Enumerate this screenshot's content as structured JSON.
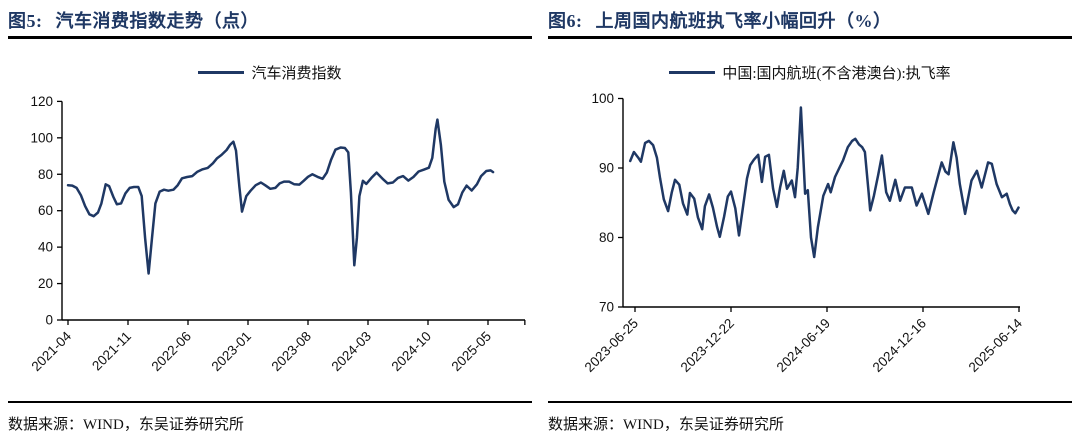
{
  "panels": [
    {
      "figure_label": "图5:",
      "title": "汽车消费指数走势（点）",
      "legend": "汽车消费指数",
      "source": "数据来源：WIND，东吴证券研究所"
    },
    {
      "figure_label": "图6:",
      "title": "上周国内航班执飞率小幅回升（%）",
      "legend": "中国:国内航班(不含港澳台):执飞率",
      "source": "数据来源：WIND，东吴证券研究所"
    }
  ],
  "colors": {
    "accent": "#1F3864",
    "line": "#1F3864",
    "axis": "#000000",
    "tick_label": "#111111"
  },
  "chart_data": [
    {
      "type": "line",
      "title": "汽车消费指数走势（点）",
      "series_name": "汽车消费指数",
      "x_unit": "months since 2021-04",
      "xlim": [
        -0.7,
        53.3
      ],
      "ylim": [
        0,
        120
      ],
      "yticks": [
        0,
        20,
        40,
        60,
        80,
        100,
        120
      ],
      "grid": false,
      "legend_position": "top-center",
      "xticks": [
        {
          "t": 0,
          "label": "2021-04"
        },
        {
          "t": 7,
          "label": "2021-11"
        },
        {
          "t": 14,
          "label": "2022-06"
        },
        {
          "t": 21,
          "label": "2023-01"
        },
        {
          "t": 28,
          "label": "2023-08"
        },
        {
          "t": 35,
          "label": "2024-03"
        },
        {
          "t": 42,
          "label": "2024-10"
        },
        {
          "t": 49,
          "label": "2025-05"
        },
        {
          "t": 53.3,
          "label": ""
        }
      ],
      "points": [
        [
          0,
          74
        ],
        [
          0.5,
          73.8
        ],
        [
          1,
          72.5
        ],
        [
          1.5,
          68.5
        ],
        [
          2,
          62.5
        ],
        [
          2.5,
          58
        ],
        [
          3,
          57
        ],
        [
          3.5,
          59
        ],
        [
          3.9,
          64
        ],
        [
          4.4,
          74.5
        ],
        [
          4.8,
          73.5
        ],
        [
          5.3,
          67.5
        ],
        [
          5.7,
          63.5
        ],
        [
          6.2,
          64
        ],
        [
          6.7,
          69.5
        ],
        [
          7.2,
          72.5
        ],
        [
          7.7,
          73
        ],
        [
          8.2,
          73
        ],
        [
          8.6,
          68
        ],
        [
          9,
          45
        ],
        [
          9.4,
          25.5
        ],
        [
          9.8,
          45
        ],
        [
          10.2,
          64
        ],
        [
          10.7,
          70.5
        ],
        [
          11.2,
          71.5
        ],
        [
          11.7,
          71
        ],
        [
          12.3,
          71.5
        ],
        [
          12.8,
          74
        ],
        [
          13.3,
          77.8
        ],
        [
          13.9,
          78.5
        ],
        [
          14.5,
          79
        ],
        [
          15.1,
          81.4
        ],
        [
          15.7,
          82.7
        ],
        [
          16.3,
          83.5
        ],
        [
          16.9,
          86
        ],
        [
          17.4,
          88.8
        ],
        [
          17.9,
          90.6
        ],
        [
          18.5,
          93.3
        ],
        [
          18.9,
          96.1
        ],
        [
          19.3,
          97.9
        ],
        [
          19.6,
          93
        ],
        [
          20,
          73
        ],
        [
          20.3,
          59.5
        ],
        [
          20.8,
          68
        ],
        [
          21.3,
          71
        ],
        [
          21.9,
          74
        ],
        [
          22.5,
          75.5
        ],
        [
          23,
          74
        ],
        [
          23.6,
          72
        ],
        [
          24.2,
          72.5
        ],
        [
          24.7,
          75
        ],
        [
          25.2,
          76
        ],
        [
          25.8,
          76
        ],
        [
          26.4,
          74.5
        ],
        [
          27,
          74.3
        ],
        [
          27.5,
          76.4
        ],
        [
          28,
          78.6
        ],
        [
          28.5,
          80
        ],
        [
          29.1,
          78.6
        ],
        [
          29.7,
          77.5
        ],
        [
          30.2,
          81
        ],
        [
          30.7,
          88
        ],
        [
          31.2,
          93.5
        ],
        [
          31.8,
          94.7
        ],
        [
          32.3,
          94.4
        ],
        [
          32.7,
          92
        ],
        [
          33,
          70
        ],
        [
          33.4,
          30
        ],
        [
          33.7,
          45
        ],
        [
          34,
          68
        ],
        [
          34.4,
          76.4
        ],
        [
          34.8,
          74.7
        ],
        [
          35.4,
          78
        ],
        [
          36,
          80.9
        ],
        [
          36.7,
          77.5
        ],
        [
          37.3,
          75
        ],
        [
          37.9,
          75.5
        ],
        [
          38.5,
          78
        ],
        [
          39.1,
          79
        ],
        [
          39.7,
          76.5
        ],
        [
          40.3,
          78.5
        ],
        [
          40.9,
          81.5
        ],
        [
          41.5,
          82.5
        ],
        [
          42.1,
          83.6
        ],
        [
          42.5,
          89
        ],
        [
          42.9,
          105
        ],
        [
          43.1,
          110
        ],
        [
          43.5,
          96
        ],
        [
          43.9,
          76
        ],
        [
          44.4,
          66
        ],
        [
          45,
          62
        ],
        [
          45.5,
          63.5
        ],
        [
          46,
          70
        ],
        [
          46.5,
          73.8
        ],
        [
          47.1,
          71.1
        ],
        [
          47.7,
          74.5
        ],
        [
          48.2,
          79
        ],
        [
          48.8,
          81.8
        ],
        [
          49.3,
          82.1
        ],
        [
          49.6,
          81.2
        ]
      ]
    },
    {
      "type": "line",
      "title": "上周国内航班执飞率小幅回升（%）",
      "series_name": "中国:国内航班(不含港澳台):执飞率",
      "x_unit": "days since 2023-06-25",
      "xlim": [
        -22.5,
        722
      ],
      "ylim": [
        70,
        100
      ],
      "yticks": [
        70,
        80,
        90,
        100
      ],
      "grid": false,
      "legend_position": "top-center",
      "xticks": [
        {
          "t": 0,
          "label": "2023-06-25"
        },
        {
          "t": 180,
          "label": "2023-12-22"
        },
        {
          "t": 360,
          "label": "2024-06-19"
        },
        {
          "t": 540,
          "label": "2024-12-16"
        },
        {
          "t": 720,
          "label": "2025-06-14"
        }
      ],
      "points": [
        [
          -9,
          91
        ],
        [
          -2,
          92.3
        ],
        [
          6,
          91.5
        ],
        [
          11,
          90.9
        ],
        [
          19,
          93.6
        ],
        [
          26,
          93.9
        ],
        [
          34,
          93.3
        ],
        [
          41,
          91.5
        ],
        [
          47,
          88.5
        ],
        [
          54,
          85.5
        ],
        [
          62,
          83.8
        ],
        [
          69,
          86.5
        ],
        [
          75,
          88.3
        ],
        [
          83,
          87.6
        ],
        [
          90,
          84.9
        ],
        [
          98,
          83.3
        ],
        [
          103,
          86.4
        ],
        [
          111,
          85.6
        ],
        [
          118,
          82.9
        ],
        [
          126,
          81.2
        ],
        [
          131,
          84.5
        ],
        [
          139,
          86.2
        ],
        [
          146,
          84.3
        ],
        [
          154,
          81.5
        ],
        [
          159,
          80.1
        ],
        [
          167,
          83
        ],
        [
          174,
          85.9
        ],
        [
          180,
          86.6
        ],
        [
          188,
          84.2
        ],
        [
          195,
          80.3
        ],
        [
          203,
          84.7
        ],
        [
          210,
          88.5
        ],
        [
          216,
          90.4
        ],
        [
          223,
          91.2
        ],
        [
          231,
          91.9
        ],
        [
          238,
          88
        ],
        [
          244,
          91.6
        ],
        [
          251,
          91.9
        ],
        [
          259,
          87
        ],
        [
          266,
          84.4
        ],
        [
          272,
          87.2
        ],
        [
          279,
          89.6
        ],
        [
          285,
          87
        ],
        [
          294,
          88.2
        ],
        [
          300,
          85.8
        ],
        [
          305,
          90
        ],
        [
          311,
          98.7
        ],
        [
          319,
          86.3
        ],
        [
          324,
          86.8
        ],
        [
          330,
          80
        ],
        [
          336,
          77.2
        ],
        [
          343,
          81.5
        ],
        [
          353,
          86
        ],
        [
          362,
          87.7
        ],
        [
          367,
          86.5
        ],
        [
          375,
          88.7
        ],
        [
          383,
          90
        ],
        [
          390,
          91.1
        ],
        [
          399,
          93
        ],
        [
          407,
          93.9
        ],
        [
          413,
          94.2
        ],
        [
          420,
          93.4
        ],
        [
          426,
          93
        ],
        [
          431,
          92.3
        ],
        [
          438,
          86.5
        ],
        [
          441,
          83.9
        ],
        [
          448,
          86
        ],
        [
          456,
          89
        ],
        [
          463,
          91.8
        ],
        [
          471,
          86.5
        ],
        [
          478,
          85.3
        ],
        [
          488,
          88.3
        ],
        [
          497,
          85.3
        ],
        [
          506,
          87.2
        ],
        [
          519,
          87.2
        ],
        [
          528,
          84.6
        ],
        [
          538,
          86.3
        ],
        [
          550,
          83.4
        ],
        [
          560,
          86.5
        ],
        [
          569,
          89.1
        ],
        [
          575,
          90.8
        ],
        [
          582,
          89.5
        ],
        [
          588,
          89.1
        ],
        [
          597,
          93.7
        ],
        [
          603,
          91.5
        ],
        [
          609,
          87.7
        ],
        [
          619,
          83.4
        ],
        [
          631,
          88.2
        ],
        [
          641,
          89.6
        ],
        [
          650,
          87.2
        ],
        [
          662,
          90.8
        ],
        [
          669,
          90.6
        ],
        [
          678,
          87.7
        ],
        [
          688,
          85.8
        ],
        [
          697,
          86.3
        ],
        [
          703,
          84.8
        ],
        [
          708,
          83.9
        ],
        [
          713,
          83.5
        ],
        [
          719,
          84.3
        ]
      ]
    }
  ]
}
